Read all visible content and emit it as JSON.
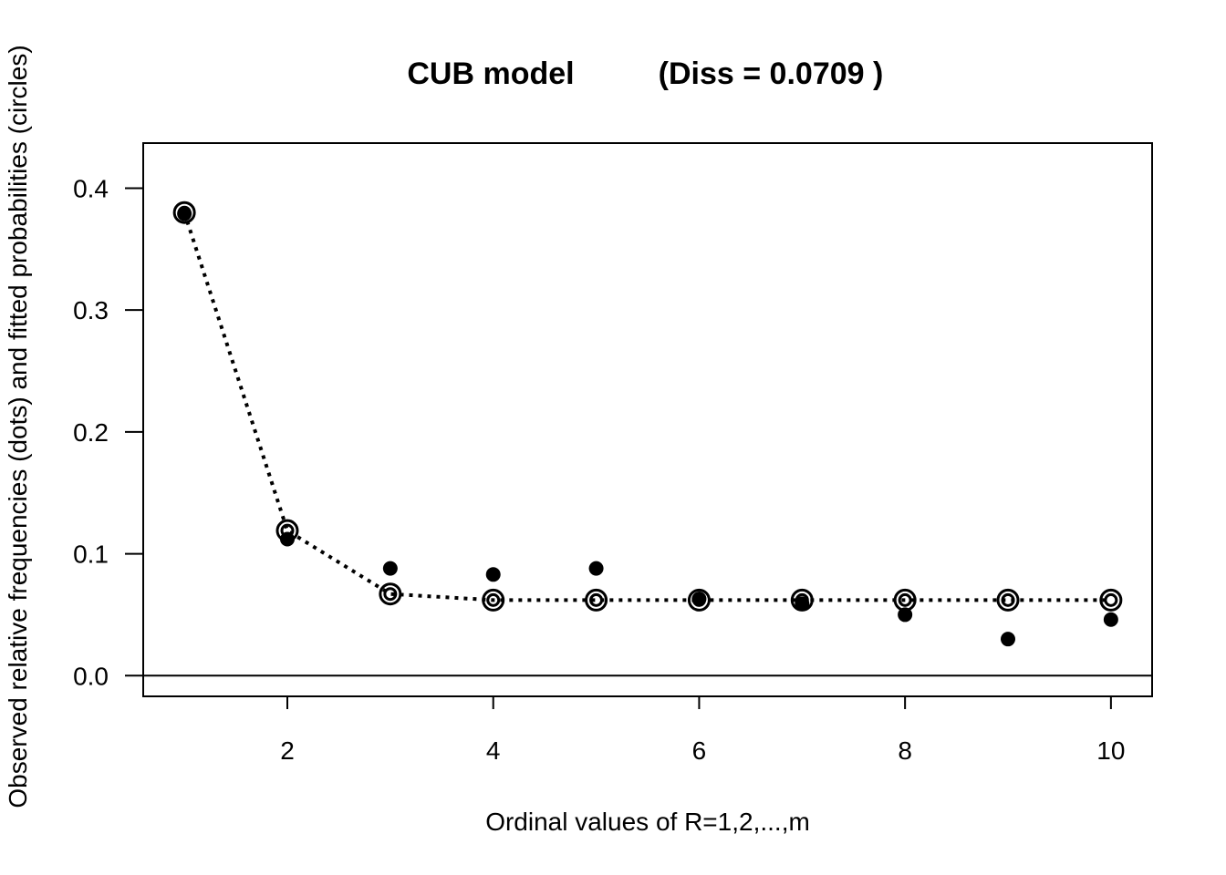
{
  "chart_data": {
    "type": "scatter",
    "title_main": "CUB model",
    "title_diss": "(Diss = 0.0709 )",
    "xlabel": "Ordinal values of R=1,2,...,m",
    "ylabel": "Observed relative frequencies (dots) and fitted probabilities (circles)",
    "xlim": [
      0.6,
      10.4
    ],
    "ylim": [
      -0.017,
      0.437
    ],
    "x_ticks": [
      2,
      4,
      6,
      8,
      10
    ],
    "y_ticks": [
      0.0,
      0.1,
      0.2,
      0.3,
      0.4
    ],
    "x_tick_labels": [
      "2",
      "4",
      "6",
      "8",
      "10"
    ],
    "y_tick_labels": [
      "0.0",
      "0.1",
      "0.2",
      "0.3",
      "0.4"
    ],
    "reference_line_y": 0.0,
    "x": [
      1,
      2,
      3,
      4,
      5,
      6,
      7,
      8,
      9,
      10
    ],
    "series": [
      {
        "name": "dots",
        "marker": "filled-circle",
        "values": [
          0.379,
          0.112,
          0.088,
          0.083,
          0.088,
          0.063,
          0.059,
          0.05,
          0.03,
          0.046
        ]
      },
      {
        "name": "circles",
        "marker": "double-circle",
        "line": "dotted",
        "values": [
          0.38,
          0.119,
          0.067,
          0.062,
          0.062,
          0.062,
          0.062,
          0.062,
          0.062,
          0.062
        ]
      }
    ],
    "grid": false,
    "legend": "none"
  }
}
